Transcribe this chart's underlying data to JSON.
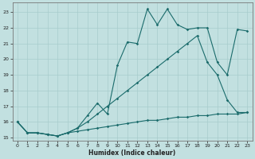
{
  "xlabel": "Humidex (Indice chaleur)",
  "bg_color": "#c2e0e0",
  "grid_color": "#a8cccc",
  "line_color": "#1a6b6b",
  "xlim": [
    -0.5,
    23.5
  ],
  "ylim": [
    14.8,
    23.6
  ],
  "xticks": [
    0,
    1,
    2,
    3,
    4,
    5,
    6,
    7,
    8,
    9,
    10,
    11,
    12,
    13,
    14,
    15,
    16,
    17,
    18,
    19,
    20,
    21,
    22,
    23
  ],
  "yticks": [
    15,
    16,
    17,
    18,
    19,
    20,
    21,
    22,
    23
  ],
  "line1_x": [
    0,
    1,
    2,
    3,
    4,
    5,
    6,
    7,
    8,
    9,
    10,
    11,
    12,
    13,
    14,
    15,
    16,
    17,
    18,
    19,
    20,
    21,
    22,
    23
  ],
  "line1_y": [
    16.0,
    15.3,
    15.3,
    15.2,
    15.1,
    15.3,
    15.6,
    16.4,
    17.2,
    16.5,
    19.6,
    21.1,
    21.0,
    23.2,
    22.2,
    23.2,
    22.2,
    21.9,
    22.0,
    22.0,
    19.8,
    19.0,
    21.9,
    21.8
  ],
  "line2_x": [
    0,
    1,
    2,
    3,
    4,
    5,
    6,
    7,
    8,
    9,
    10,
    11,
    12,
    13,
    14,
    15,
    16,
    17,
    18,
    19,
    20,
    21,
    22,
    23
  ],
  "line2_y": [
    16.0,
    15.3,
    15.3,
    15.2,
    15.1,
    15.3,
    15.6,
    16.0,
    16.5,
    17.0,
    17.5,
    18.0,
    18.5,
    19.0,
    19.5,
    20.0,
    20.5,
    21.0,
    21.5,
    19.8,
    19.0,
    17.4,
    16.6,
    16.6
  ],
  "line3_x": [
    0,
    1,
    2,
    3,
    4,
    5,
    6,
    7,
    8,
    9,
    10,
    11,
    12,
    13,
    14,
    15,
    16,
    17,
    18,
    19,
    20,
    21,
    22,
    23
  ],
  "line3_y": [
    16.0,
    15.3,
    15.3,
    15.2,
    15.1,
    15.3,
    15.4,
    15.5,
    15.6,
    15.7,
    15.8,
    15.9,
    16.0,
    16.1,
    16.1,
    16.2,
    16.3,
    16.3,
    16.4,
    16.4,
    16.5,
    16.5,
    16.5,
    16.6
  ]
}
